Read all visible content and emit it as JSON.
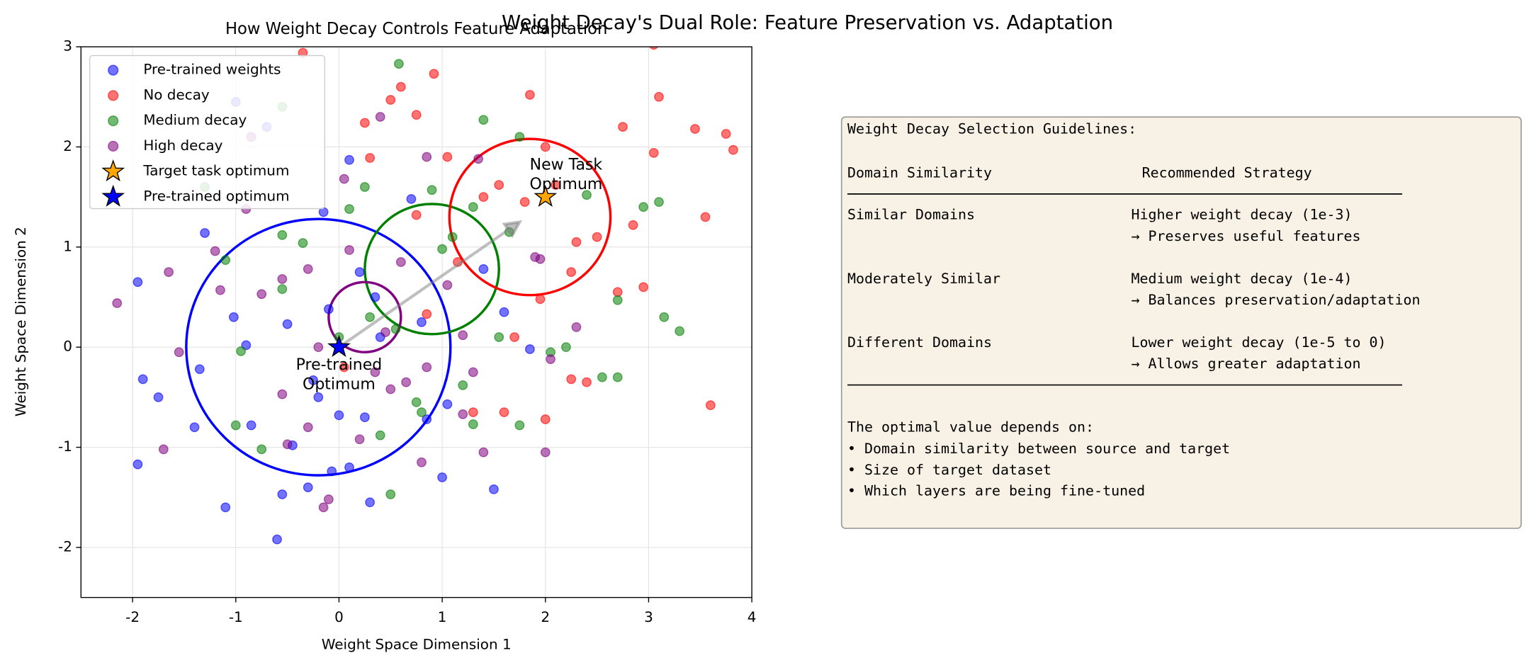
{
  "chart_data": {
    "type": "scatter",
    "suptitle": "Weight Decay's Dual Role: Feature Preservation vs. Adaptation",
    "title": "How Weight Decay Controls Feature Adaptation",
    "xlabel": "Weight Space Dimension 1",
    "ylabel": "Weight Space Dimension 2",
    "xlim": [
      -2.5,
      4
    ],
    "ylim": [
      -2.5,
      3
    ],
    "xticks": [
      -2,
      -1,
      0,
      1,
      2,
      3,
      4
    ],
    "yticks": [
      -2,
      -1,
      0,
      1,
      2,
      3
    ],
    "grid": true,
    "legend": "upper left",
    "series": [
      {
        "name": "Pre-trained weights",
        "color": "blue",
        "marker": "o",
        "x": [
          -1.95,
          -1.95,
          -1.9,
          -1.75,
          -1.4,
          -1.3,
          -1.1,
          -1.02,
          -0.9,
          -0.85,
          -0.6,
          -0.55,
          -0.5,
          -0.45,
          -0.3,
          -0.2,
          -0.1,
          0.0,
          -0.07,
          0.1,
          0.1,
          0.3,
          0.35,
          0.4,
          0.7,
          0.85,
          1.0,
          1.05,
          1.5,
          1.6,
          1.85,
          -0.25,
          0.8,
          0.2,
          1.4,
          -1.0,
          -0.7,
          -0.15,
          0.25,
          -1.35
        ],
        "y": [
          0.65,
          -1.17,
          -0.32,
          -0.5,
          -0.8,
          1.14,
          -1.6,
          0.3,
          0.02,
          -0.78,
          -1.92,
          -1.47,
          0.23,
          -0.98,
          -1.4,
          -0.5,
          0.38,
          -0.68,
          -1.24,
          -1.2,
          1.87,
          -1.55,
          0.5,
          0.1,
          1.48,
          -0.72,
          -1.3,
          -0.57,
          -1.42,
          0.35,
          -0.02,
          -0.33,
          0.25,
          0.75,
          0.78,
          2.45,
          2.2,
          1.35,
          -0.7,
          -0.22
        ]
      },
      {
        "name": "No decay",
        "color": "red",
        "marker": "o",
        "x": [
          0.3,
          0.5,
          0.6,
          0.75,
          0.92,
          1.05,
          1.4,
          1.55,
          1.8,
          1.85,
          2.0,
          2.1,
          2.3,
          2.4,
          2.5,
          2.7,
          2.75,
          2.95,
          3.05,
          3.1,
          3.45,
          3.55,
          3.6,
          3.75,
          3.82,
          2.0,
          1.6,
          1.3,
          1.15,
          0.85,
          0.75,
          0.25,
          -0.35,
          3.05,
          2.85,
          2.25,
          1.95,
          1.7,
          0.05,
          2.25
        ],
        "y": [
          1.89,
          2.47,
          2.6,
          2.32,
          2.73,
          1.9,
          1.5,
          1.62,
          1.45,
          2.52,
          2.0,
          1.62,
          1.05,
          -0.35,
          1.1,
          0.55,
          2.2,
          0.6,
          1.94,
          2.5,
          2.18,
          1.3,
          -0.58,
          2.13,
          1.97,
          -0.72,
          -0.65,
          -0.65,
          0.85,
          0.33,
          1.32,
          2.24,
          2.94,
          3.02,
          1.22,
          0.75,
          0.48,
          0.1,
          -0.2,
          -0.32
        ]
      },
      {
        "name": "Medium decay",
        "color": "green",
        "marker": "o",
        "x": [
          -0.55,
          0.58,
          1.4,
          1.75,
          0.9,
          1.3,
          1.65,
          0.25,
          -1.1,
          -1.0,
          -0.75,
          -0.55,
          -0.35,
          0.5,
          0.75,
          0.8,
          1.3,
          1.75,
          2.05,
          2.2,
          2.55,
          2.7,
          2.95,
          3.1,
          3.15,
          3.3,
          2.7,
          2.4,
          1.0,
          0.55,
          -0.55,
          -0.95,
          1.55,
          0.3,
          0.0,
          -1.3,
          0.1,
          1.1,
          0.4,
          1.2
        ],
        "y": [
          2.4,
          2.83,
          2.27,
          2.1,
          1.57,
          1.4,
          1.15,
          1.6,
          0.87,
          -0.78,
          -1.02,
          1.12,
          1.04,
          -1.47,
          -0.55,
          -0.65,
          -0.77,
          -0.78,
          -0.05,
          0.0,
          -0.3,
          -0.3,
          1.4,
          1.45,
          0.3,
          0.16,
          0.47,
          1.52,
          0.98,
          0.18,
          0.58,
          -0.04,
          0.1,
          0.3,
          0.1,
          1.6,
          1.38,
          1.1,
          -0.88,
          -0.38
        ]
      },
      {
        "name": "High decay",
        "color": "purple",
        "marker": "o",
        "x": [
          -2.15,
          -1.65,
          -1.7,
          -1.55,
          -1.2,
          -0.9,
          -0.75,
          -0.55,
          -0.55,
          -0.5,
          -0.3,
          -0.15,
          -0.1,
          0.05,
          0.2,
          0.4,
          0.5,
          0.65,
          0.8,
          0.85,
          1.2,
          1.3,
          1.35,
          1.4,
          1.95,
          2.0,
          2.05,
          2.3,
          1.2,
          0.6,
          0.1,
          -0.3,
          0.85,
          -0.85,
          -1.15,
          1.05,
          0.45,
          -0.2,
          0.35,
          1.9
        ],
        "y": [
          0.44,
          0.75,
          -1.02,
          -0.05,
          0.96,
          1.38,
          0.53,
          0.68,
          -0.47,
          -0.97,
          -0.8,
          -1.6,
          -1.52,
          1.68,
          -0.92,
          2.3,
          -0.42,
          -0.35,
          -1.15,
          1.9,
          -0.67,
          -0.25,
          1.88,
          -1.05,
          0.88,
          -1.05,
          -0.12,
          0.2,
          0.12,
          0.85,
          0.97,
          0.78,
          -0.2,
          2.1,
          0.57,
          0.62,
          0.15,
          0.0,
          -0.25,
          0.9
        ]
      },
      {
        "name": "Target task optimum",
        "color": "orange",
        "marker": "*",
        "x": [
          2
        ],
        "y": [
          1.5
        ]
      },
      {
        "name": "Pre-trained optimum",
        "color": "blue",
        "marker": "*",
        "x": [
          0
        ],
        "y": [
          0
        ]
      }
    ],
    "circles": [
      {
        "color": "blue",
        "cx": -0.2,
        "cy": 0,
        "r": 1.28
      },
      {
        "color": "green",
        "cx": 0.9,
        "cy": 0.78,
        "r": 0.65
      },
      {
        "color": "purple",
        "cx": 0.25,
        "cy": 0.3,
        "r": 0.35
      },
      {
        "color": "red",
        "cx": 1.85,
        "cy": 1.3,
        "r": 0.78
      }
    ],
    "arrow": {
      "color": "gray",
      "x": [
        0,
        1.75
      ],
      "y": [
        0,
        1.25
      ]
    },
    "annotations": [
      {
        "lines": [
          "New Task",
          "Optimum"
        ],
        "x": 2.2,
        "y": 1.72
      },
      {
        "lines": [
          "Pre-trained",
          "Optimum"
        ],
        "x": 0,
        "y": -0.28
      }
    ],
    "text_box": {
      "title": "Weight Decay Selection Guidelines:",
      "columns": [
        "Domain Similarity",
        "Recommended Strategy"
      ],
      "rows": [
        {
          "domain": "Similar Domains",
          "strategy": "Higher weight decay (1e-3)",
          "effect": "→ Preserves useful features"
        },
        {
          "domain": "Moderately Similar",
          "strategy": "Medium weight decay (1e-4)",
          "effect": "→ Balances preservation/adaptation"
        },
        {
          "domain": "Different Domains",
          "strategy": "Lower weight decay (1e-5 to 0)",
          "effect": "→ Allows greater adaptation"
        }
      ],
      "note": "The optimal value depends on:",
      "bullets": [
        "• Domain similarity between source and target",
        "• Size of target dataset",
        "• Which layers are being fine-tuned"
      ]
    }
  }
}
